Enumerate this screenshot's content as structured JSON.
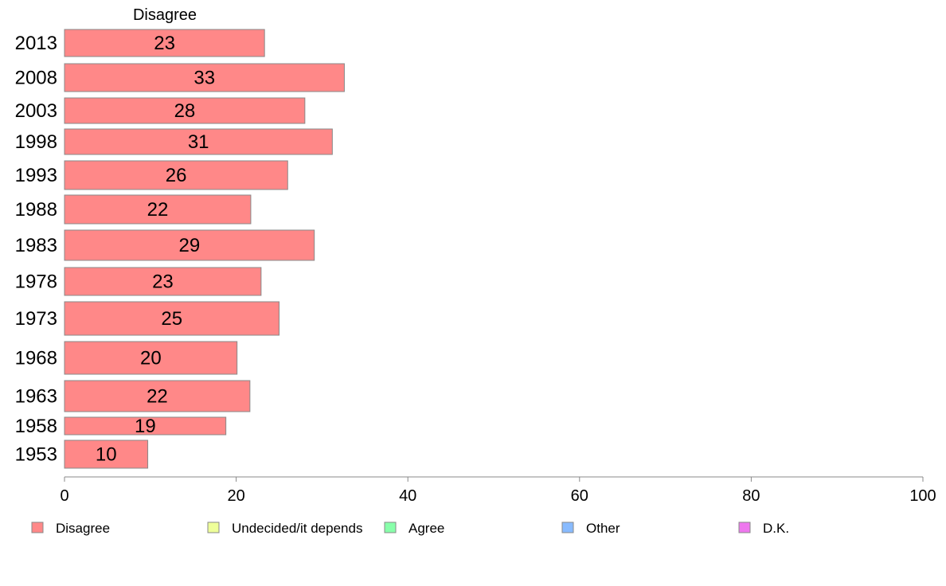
{
  "chart_data": {
    "type": "bar",
    "orientation": "horizontal",
    "series_header": "Disagree",
    "categories": [
      "2013",
      "2008",
      "2003",
      "1998",
      "1993",
      "1988",
      "1983",
      "1978",
      "1973",
      "1968",
      "1963",
      "1958",
      "1953"
    ],
    "series": [
      {
        "name": "Disagree",
        "color": "#ff8888",
        "values": [
          23.3,
          32.6,
          28.0,
          31.2,
          26.0,
          21.7,
          29.1,
          22.9,
          25.0,
          20.1,
          21.6,
          18.8,
          9.7
        ],
        "labels": [
          "23",
          "33",
          "28",
          "31",
          "26",
          "22",
          "29",
          "23",
          "25",
          "20",
          "22",
          "19",
          "10"
        ]
      }
    ],
    "xlim": [
      0,
      100
    ],
    "xticks": [
      "0",
      "20",
      "40",
      "60",
      "80",
      "100"
    ],
    "grid": false,
    "legend_position": "bottom",
    "legend": [
      {
        "label": "Disagree",
        "color": "#ff8888"
      },
      {
        "label": "Undecided/it depends",
        "color": "#eeff99"
      },
      {
        "label": "Agree",
        "color": "#88ffaa"
      },
      {
        "label": "Other",
        "color": "#88bbff"
      },
      {
        "label": "D.K.",
        "color": "#ee77ee"
      }
    ]
  }
}
